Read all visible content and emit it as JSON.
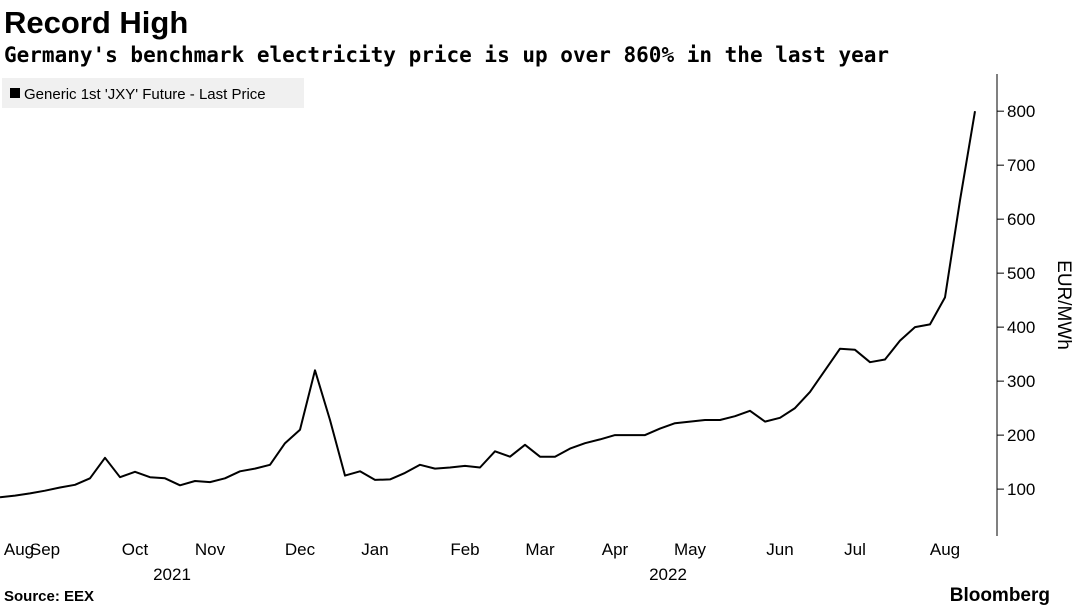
{
  "chart_data": {
    "type": "line",
    "title": "Record High",
    "subtitle": "Germany's benchmark electricity price is up over 860% in the last year",
    "y_label": "EUR/MWh",
    "source": "Source: EEX",
    "brand": "Bloomberg",
    "year_labels": [
      "2021",
      "2022"
    ],
    "categories": [
      null,
      "Aug",
      null,
      "Sep",
      null,
      null,
      null,
      null,
      null,
      "Oct",
      null,
      null,
      null,
      null,
      "Nov",
      null,
      null,
      null,
      null,
      null,
      "Dec",
      null,
      null,
      null,
      null,
      "Jan",
      null,
      null,
      null,
      null,
      null,
      "Feb",
      null,
      null,
      null,
      null,
      "Mar",
      null,
      null,
      null,
      null,
      "Apr",
      null,
      null,
      null,
      null,
      "May",
      null,
      null,
      null,
      null,
      null,
      "Jun",
      null,
      null,
      null,
      null,
      "Jul",
      null,
      null,
      null,
      null,
      null,
      "Aug",
      null,
      null
    ],
    "series": [
      {
        "name": "Generic 1st 'JXY' Future - Last Price",
        "color": "#000000",
        "values": [
          85,
          88,
          92,
          97,
          103,
          108,
          120,
          158,
          122,
          132,
          122,
          120,
          107,
          115,
          113,
          120,
          133,
          138,
          145,
          185,
          210,
          320,
          228,
          125,
          133,
          117,
          118,
          130,
          145,
          138,
          140,
          143,
          140,
          170,
          160,
          182,
          160,
          160,
          175,
          185,
          192,
          200,
          200,
          200,
          212,
          222,
          225,
          228,
          228,
          235,
          245,
          225,
          232,
          250,
          280,
          320,
          360,
          358,
          335,
          340,
          375,
          400,
          405,
          455,
          635,
          800
        ]
      }
    ],
    "ylim": [
      15,
      867
    ],
    "yticks": [
      100,
      200,
      300,
      400,
      500,
      600,
      700,
      800
    ],
    "legend": "top-left",
    "grid": false
  }
}
